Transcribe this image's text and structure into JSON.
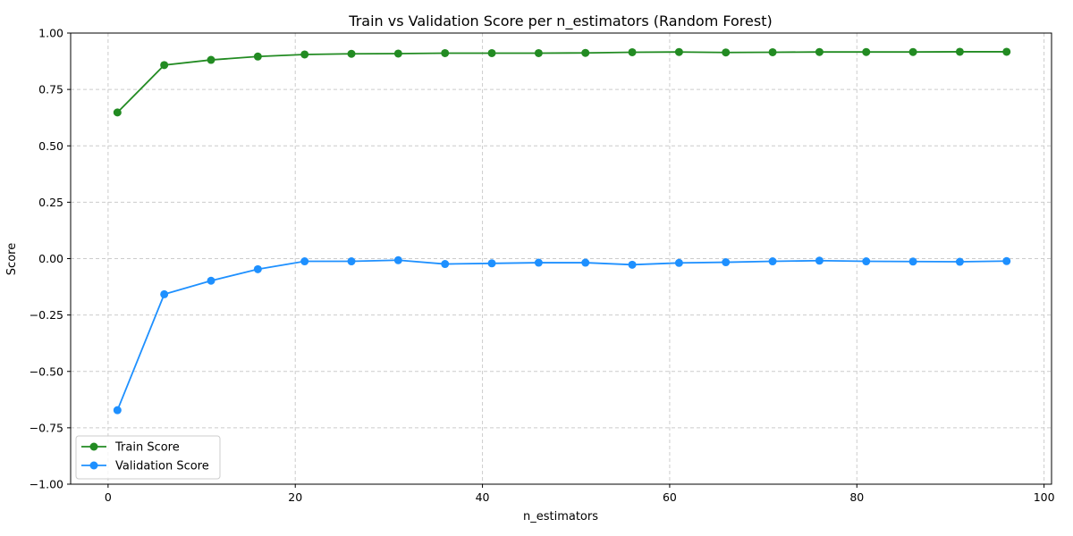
{
  "chart_data": {
    "type": "line",
    "title": "Train vs Validation Score per n_estimators (Random Forest)",
    "xlabel": "n_estimators",
    "ylabel": "Score",
    "xlim": [
      -4,
      100.8
    ],
    "ylim": [
      -1.0,
      1.0
    ],
    "xticks": [
      0,
      20,
      40,
      60,
      80,
      100
    ],
    "xtick_labels": [
      "0",
      "20",
      "40",
      "60",
      "80",
      "100"
    ],
    "yticks": [
      -1.0,
      -0.75,
      -0.5,
      -0.25,
      0.0,
      0.25,
      0.5,
      0.75,
      1.0
    ],
    "ytick_labels": [
      "−1.00",
      "−0.75",
      "−0.50",
      "−0.25",
      "0.00",
      "0.25",
      "0.50",
      "0.75",
      "1.00"
    ],
    "grid": true,
    "legend_position": "lower-left",
    "x": [
      1,
      6,
      11,
      16,
      21,
      26,
      31,
      36,
      41,
      46,
      51,
      56,
      61,
      66,
      71,
      76,
      81,
      86,
      91,
      96
    ],
    "series": [
      {
        "name": "Train Score",
        "color": "#228b22",
        "marker": "circle",
        "values": [
          0.648,
          0.858,
          0.881,
          0.896,
          0.905,
          0.908,
          0.909,
          0.911,
          0.911,
          0.911,
          0.912,
          0.915,
          0.916,
          0.914,
          0.915,
          0.916,
          0.916,
          0.916,
          0.917,
          0.917
        ]
      },
      {
        "name": "Validation Score",
        "color": "#1e90ff",
        "marker": "circle",
        "values": [
          -0.672,
          -0.158,
          -0.098,
          -0.047,
          -0.012,
          -0.012,
          -0.007,
          -0.024,
          -0.021,
          -0.018,
          -0.018,
          -0.027,
          -0.019,
          -0.016,
          -0.012,
          -0.009,
          -0.012,
          -0.013,
          -0.014,
          -0.011
        ]
      }
    ]
  }
}
